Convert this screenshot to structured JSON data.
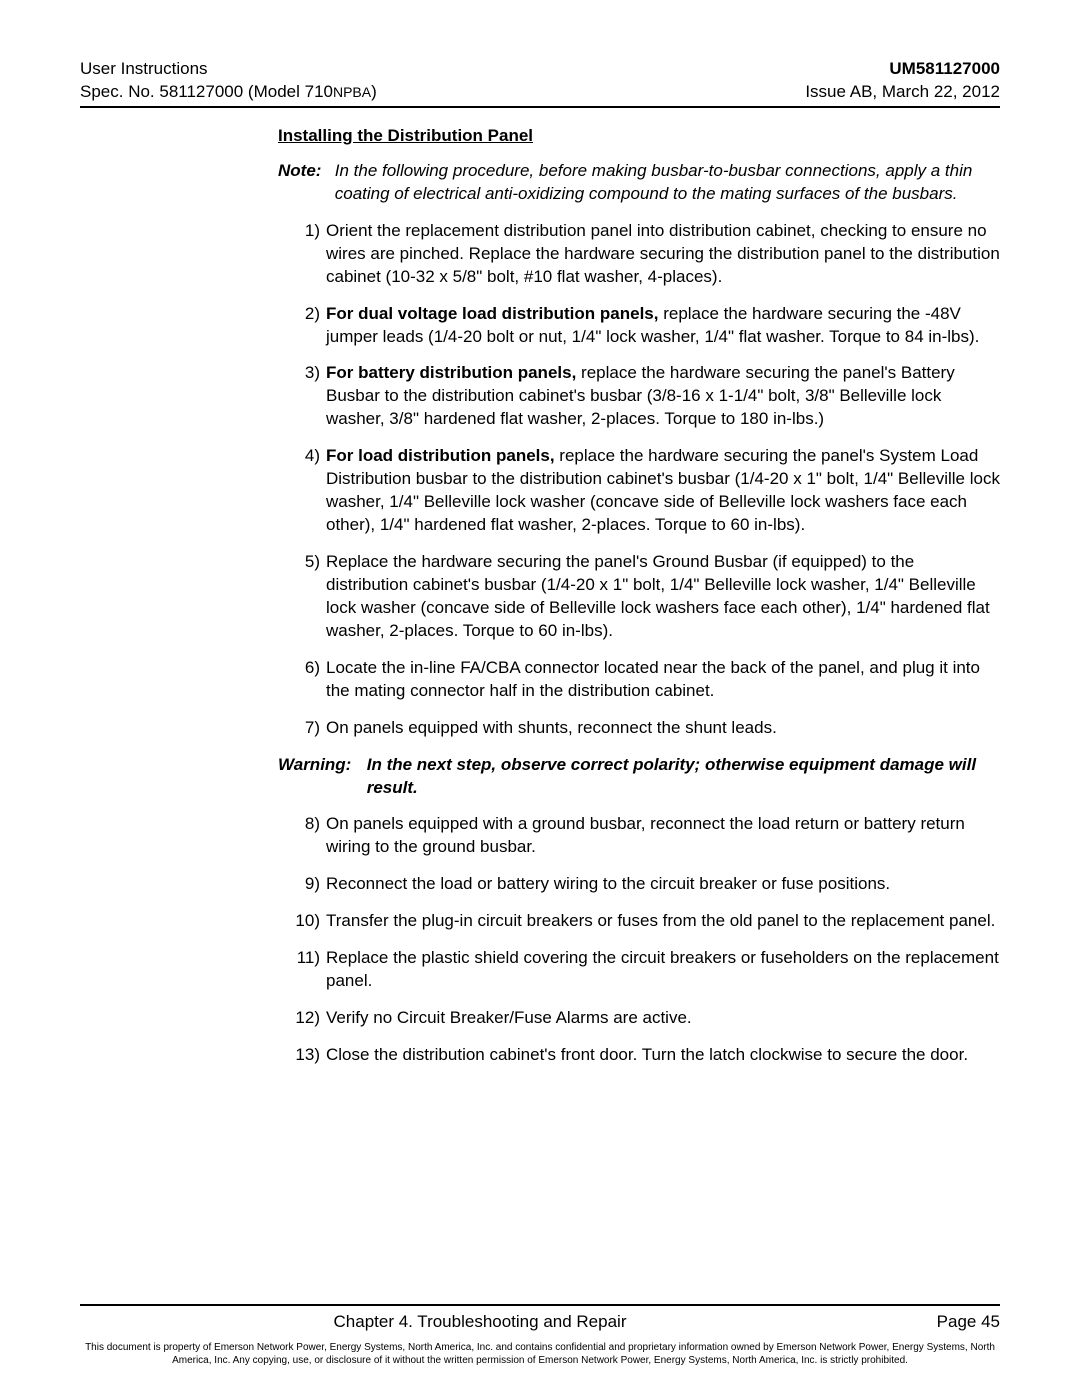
{
  "header": {
    "left_line1": "User Instructions",
    "left_line2_a": "Spec. No. 581127000 (Model 710",
    "left_line2_b": "NPBA",
    "left_line2_c": ")",
    "right_line1": "UM581127000",
    "right_line2": "Issue AB, March 22, 2012"
  },
  "section_title": "Installing the Distribution Panel",
  "note": {
    "label": "Note:",
    "text": "In the following procedure, before making busbar-to-busbar connections, apply a thin coating of electrical anti-oxidizing compound to the mating surfaces of the busbars."
  },
  "steps": [
    {
      "n": "1)",
      "pre": "",
      "bold": "",
      "post": "Orient the replacement distribution panel into distribution cabinet, checking to ensure no wires are pinched.  Replace the hardware securing the distribution panel to the distribution cabinet (10-32 x 5/8\" bolt, #10 flat washer, 4-places)."
    },
    {
      "n": "2)",
      "pre": "",
      "bold": "For dual voltage load distribution panels,",
      "post": " replace the hardware securing the -48V jumper leads (1/4-20 bolt or nut, 1/4\" lock washer, 1/4\" flat washer.  Torque to 84 in-lbs)."
    },
    {
      "n": "3)",
      "pre": "",
      "bold": "For battery distribution panels,",
      "post": " replace the hardware securing the panel's Battery Busbar to the distribution cabinet's busbar (3/8-16 x 1-1/4\" bolt, 3/8\" Belleville lock washer, 3/8\" hardened flat washer, 2-places.  Torque to 180 in-lbs.)"
    },
    {
      "n": "4)",
      "pre": "",
      "bold": "For load distribution panels,",
      "post": " replace the hardware securing the panel's System Load Distribution busbar to the distribution cabinet's busbar (1/4-20 x 1\" bolt, 1/4\" Belleville lock washer, 1/4\" Belleville lock washer (concave side of Belleville lock washers face each other), 1/4\" hardened flat washer, 2-places.  Torque to 60 in-lbs)."
    },
    {
      "n": "5)",
      "pre": "",
      "bold": "",
      "post": "Replace the hardware securing the panel's Ground Busbar (if equipped) to the distribution cabinet's busbar (1/4-20 x 1\" bolt, 1/4\" Belleville lock washer, 1/4\" Belleville lock washer (concave side of Belleville lock washers face each other), 1/4\" hardened flat washer, 2-places.  Torque to 60 in-lbs)."
    },
    {
      "n": "6)",
      "pre": "",
      "bold": "",
      "post": "Locate the in-line FA/CBA connector located near the back of the panel, and plug it into the mating connector half in the distribution cabinet."
    },
    {
      "n": "7)",
      "pre": "",
      "bold": "",
      "post": "On panels equipped with shunts, reconnect the shunt leads."
    }
  ],
  "warning": {
    "label": "Warning:",
    "text": "In the next step, observe correct polarity; otherwise equipment damage will result."
  },
  "steps2": [
    {
      "n": "8)",
      "text": "On panels equipped with a ground busbar, reconnect the load return or battery return wiring to the ground busbar."
    },
    {
      "n": "9)",
      "text": "Reconnect the load or battery wiring to the circuit breaker or fuse positions."
    },
    {
      "n": "10)",
      "text": "Transfer the plug-in circuit breakers or fuses from the old panel to the replacement panel."
    },
    {
      "n": "11)",
      "text": "Replace the plastic shield covering the circuit breakers or fuseholders on the replacement panel."
    },
    {
      "n": "12)",
      "text": "Verify no Circuit Breaker/Fuse Alarms are active."
    },
    {
      "n": "13)",
      "text": "Close the distribution cabinet's front door.  Turn the latch clockwise to secure the door."
    }
  ],
  "footer": {
    "chapter": "Chapter 4. Troubleshooting and Repair",
    "page": "Page 45",
    "disclaimer": "This document is property of Emerson Network Power, Energy Systems, North America, Inc. and contains confidential and proprietary information owned by Emerson Network Power, Energy Systems, North America, Inc.  Any copying, use, or disclosure of it without the written permission of Emerson Network Power, Energy Systems, North America, Inc. is strictly prohibited."
  }
}
